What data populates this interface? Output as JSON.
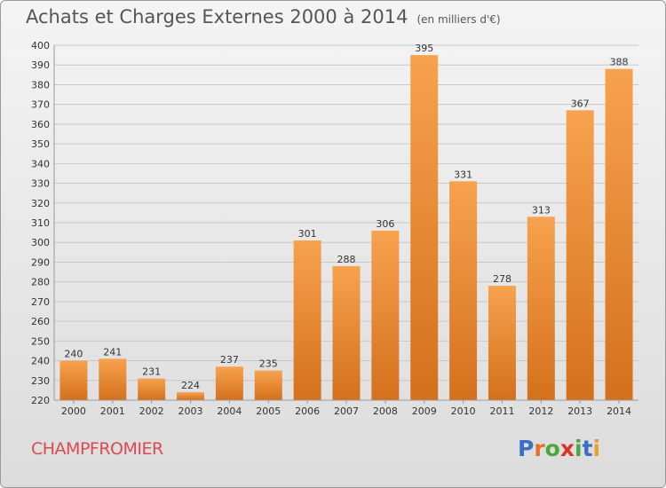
{
  "header": {
    "title": "Achats et Charges Externes 2000 à 2014",
    "unit": "(en milliers d'€)"
  },
  "footer": {
    "commune": "CHAMPFROMIER",
    "logo_text": "Proxiti"
  },
  "colors": {
    "bar_top": "#f7a24e",
    "bar_bottom": "#d4701c",
    "grid": "#c8c8c8",
    "commune": "#d94a52",
    "logo": [
      "#3a6fc6",
      "#e8702a",
      "#4aa83c",
      "#d9342b",
      "#4aa83c",
      "#3a6fc6",
      "#e8a02a"
    ]
  },
  "chart_data": {
    "type": "bar",
    "title": "Achats et Charges Externes 2000 à 2014",
    "subtitle": "(en milliers d'€)",
    "xlabel": "",
    "ylabel": "",
    "categories": [
      "2000",
      "2001",
      "2002",
      "2003",
      "2004",
      "2005",
      "2006",
      "2007",
      "2008",
      "2009",
      "2010",
      "2011",
      "2012",
      "2013",
      "2014"
    ],
    "values": [
      240,
      241,
      231,
      224,
      237,
      235,
      301,
      288,
      306,
      395,
      331,
      278,
      313,
      367,
      388
    ],
    "ylim": [
      220,
      400
    ],
    "yticks": [
      220,
      230,
      240,
      250,
      260,
      270,
      280,
      290,
      300,
      310,
      320,
      330,
      340,
      350,
      360,
      370,
      380,
      390,
      400
    ],
    "grid": true,
    "data_labels": true
  }
}
